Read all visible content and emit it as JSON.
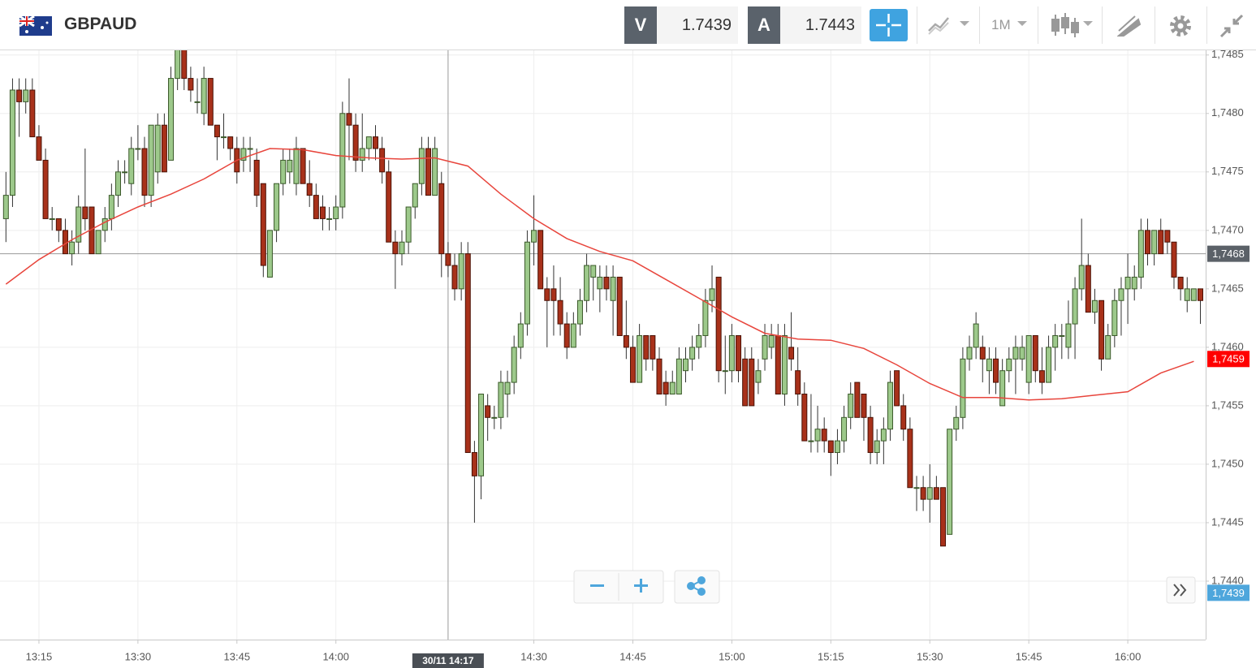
{
  "header": {
    "symbol": "GBPAUD",
    "bid_label": "V",
    "bid": "1.7439",
    "ask_label": "A",
    "ask": "1.7443",
    "timeframe": "1M"
  },
  "chart_data": {
    "type": "candlestick",
    "up_color": "#9dc98b",
    "down_color": "#a8311a",
    "grid": true,
    "xlim": [
      789.1,
      971.8
    ],
    "ylim": [
      1.7435,
      1.74854
    ],
    "xticks": [
      {
        "value": 795,
        "label": "13:15"
      },
      {
        "value": 810,
        "label": "13:30"
      },
      {
        "value": 825,
        "label": "13:45"
      },
      {
        "value": 840,
        "label": "14:00"
      },
      {
        "value": 870,
        "label": "14:30"
      },
      {
        "value": 885,
        "label": "14:45"
      },
      {
        "value": 900,
        "label": "15:00"
      },
      {
        "value": 915,
        "label": "15:15"
      },
      {
        "value": 930,
        "label": "15:30"
      },
      {
        "value": 945,
        "label": "15:45"
      },
      {
        "value": 960,
        "label": "16:00"
      }
    ],
    "yticks": [
      {
        "value": 1.7485,
        "label": "1,7485"
      },
      {
        "value": 1.748,
        "label": "1,7480"
      },
      {
        "value": 1.7475,
        "label": "1,7475"
      },
      {
        "value": 1.747,
        "label": "1,7470"
      },
      {
        "value": 1.7465,
        "label": "1,7465"
      },
      {
        "value": 1.746,
        "label": "1,7460"
      },
      {
        "value": 1.7455,
        "label": "1,7455"
      },
      {
        "value": 1.745,
        "label": "1,7450"
      },
      {
        "value": 1.7445,
        "label": "1,7445"
      },
      {
        "value": 1.744,
        "label": "1,7440"
      }
    ],
    "x": [
      790,
      791,
      792,
      793,
      794,
      795,
      796,
      797,
      798,
      799,
      800,
      801,
      802,
      803,
      804,
      805,
      806,
      807,
      808,
      809,
      810,
      811,
      812,
      813,
      814,
      815,
      816,
      817,
      818,
      819,
      820,
      821,
      822,
      823,
      824,
      825,
      826,
      827,
      828,
      829,
      830,
      831,
      832,
      833,
      834,
      835,
      836,
      837,
      838,
      839,
      840,
      841,
      842,
      843,
      844,
      845,
      846,
      847,
      848,
      849,
      850,
      851,
      852,
      853,
      854,
      855,
      856,
      857,
      858,
      859,
      860,
      861,
      862,
      863,
      864,
      865,
      866,
      867,
      868,
      869,
      870,
      871,
      872,
      873,
      874,
      875,
      876,
      877,
      878,
      879,
      880,
      881,
      882,
      883,
      884,
      885,
      886,
      887,
      888,
      889,
      890,
      891,
      892,
      893,
      894,
      895,
      896,
      897,
      898,
      899,
      900,
      901,
      902,
      903,
      904,
      905,
      906,
      907,
      908,
      909,
      910,
      911,
      912,
      913,
      914,
      915,
      916,
      917,
      918,
      919,
      920,
      921,
      922,
      923,
      924,
      925,
      926,
      927,
      928,
      929,
      930,
      931,
      932,
      933,
      934,
      935,
      936,
      937,
      938,
      939,
      940,
      941,
      942,
      943,
      944,
      945,
      946,
      947,
      948,
      949,
      950,
      951,
      952,
      953,
      954,
      955,
      956,
      957,
      958,
      959,
      960,
      961,
      962,
      963,
      964,
      965,
      966,
      967,
      968,
      969,
      970,
      971
    ],
    "ohlc": [
      [
        1.7471,
        1.7475,
        1.7469,
        1.7473
      ],
      [
        1.7473,
        1.7483,
        1.7472,
        1.7482
      ],
      [
        1.7482,
        1.7483,
        1.7478,
        1.7481
      ],
      [
        1.7481,
        1.7483,
        1.748,
        1.7482
      ],
      [
        1.7482,
        1.7483,
        1.7478,
        1.7478
      ],
      [
        1.7478,
        1.7479,
        1.7476,
        1.7476
      ],
      [
        1.7476,
        1.7477,
        1.7471,
        1.7471
      ],
      [
        1.7471,
        1.7472,
        1.747,
        1.7471
      ],
      [
        1.7471,
        1.7471,
        1.7469,
        1.747
      ],
      [
        1.747,
        1.7471,
        1.7468,
        1.7468
      ],
      [
        1.7468,
        1.747,
        1.7467,
        1.7469
      ],
      [
        1.7469,
        1.7473,
        1.7468,
        1.7472
      ],
      [
        1.7472,
        1.7477,
        1.747,
        1.7471
      ],
      [
        1.7472,
        1.7472,
        1.7468,
        1.7468
      ],
      [
        1.7468,
        1.747,
        1.7468,
        1.747
      ],
      [
        1.747,
        1.7472,
        1.7469,
        1.7471
      ],
      [
        1.7471,
        1.7474,
        1.747,
        1.7473
      ],
      [
        1.7473,
        1.7476,
        1.7472,
        1.7475
      ],
      [
        1.7475,
        1.7476,
        1.7474,
        1.7475
      ],
      [
        1.7474,
        1.7478,
        1.7473,
        1.7477
      ],
      [
        1.7477,
        1.7479,
        1.7476,
        1.7477
      ],
      [
        1.7477,
        1.7478,
        1.7472,
        1.7473
      ],
      [
        1.7473,
        1.7479,
        1.7472,
        1.7479
      ],
      [
        1.7475,
        1.748,
        1.7474,
        1.7479
      ],
      [
        1.7479,
        1.748,
        1.7475,
        1.7475
      ],
      [
        1.7476,
        1.7484,
        1.7476,
        1.7483
      ],
      [
        1.7483,
        1.7487,
        1.7482,
        1.7486
      ],
      [
        1.7486,
        1.7486,
        1.7482,
        1.7483
      ],
      [
        1.7483,
        1.7484,
        1.7481,
        1.7482
      ],
      [
        1.7481,
        1.7483,
        1.748,
        1.7481
      ],
      [
        1.748,
        1.7484,
        1.7479,
        1.7483
      ],
      [
        1.7483,
        1.7483,
        1.7479,
        1.7479
      ],
      [
        1.7479,
        1.7479,
        1.7476,
        1.7478
      ],
      [
        1.7478,
        1.748,
        1.7477,
        1.7478
      ],
      [
        1.7478,
        1.7478,
        1.7476,
        1.7477
      ],
      [
        1.7477,
        1.7478,
        1.7474,
        1.7475
      ],
      [
        1.7476,
        1.7478,
        1.7475,
        1.7477
      ],
      [
        1.7477,
        1.7478,
        1.7475,
        1.7477
      ],
      [
        1.7476,
        1.7477,
        1.7472,
        1.7473
      ],
      [
        1.7474,
        1.7474,
        1.7466,
        1.7467
      ],
      [
        1.7466,
        1.747,
        1.7466,
        1.747
      ],
      [
        1.747,
        1.7474,
        1.7469,
        1.7474
      ],
      [
        1.7474,
        1.7477,
        1.7473,
        1.7476
      ],
      [
        1.7475,
        1.7477,
        1.7474,
        1.7476
      ],
      [
        1.7474,
        1.7478,
        1.7473,
        1.7477
      ],
      [
        1.7477,
        1.7477,
        1.7474,
        1.7474
      ],
      [
        1.7474,
        1.7476,
        1.7472,
        1.7473
      ],
      [
        1.7473,
        1.7474,
        1.7471,
        1.7471
      ],
      [
        1.7472,
        1.7473,
        1.747,
        1.7471
      ],
      [
        1.7471,
        1.7472,
        1.747,
        1.7471
      ],
      [
        1.7471,
        1.7473,
        1.747,
        1.7472
      ],
      [
        1.7472,
        1.7481,
        1.7471,
        1.748
      ],
      [
        1.748,
        1.7483,
        1.7476,
        1.7479
      ],
      [
        1.7479,
        1.748,
        1.7475,
        1.7476
      ],
      [
        1.7476,
        1.748,
        1.7475,
        1.7477
      ],
      [
        1.7477,
        1.7478,
        1.7476,
        1.7478
      ],
      [
        1.7478,
        1.7479,
        1.7476,
        1.7477
      ],
      [
        1.7477,
        1.7478,
        1.7474,
        1.7475
      ],
      [
        1.7475,
        1.7476,
        1.7469,
        1.7469
      ],
      [
        1.7469,
        1.747,
        1.7465,
        1.7468
      ],
      [
        1.7468,
        1.747,
        1.7467,
        1.7469
      ],
      [
        1.7469,
        1.7472,
        1.7468,
        1.7472
      ],
      [
        1.7472,
        1.7474,
        1.7471,
        1.7474
      ],
      [
        1.7474,
        1.7478,
        1.7473,
        1.7477
      ],
      [
        1.7477,
        1.7478,
        1.7473,
        1.7473
      ],
      [
        1.7473,
        1.7478,
        1.7473,
        1.7477
      ],
      [
        1.7474,
        1.7475,
        1.7466,
        1.7468
      ],
      [
        1.7468,
        1.7469,
        1.7466,
        1.7467
      ],
      [
        1.7467,
        1.7468,
        1.7464,
        1.7465
      ],
      [
        1.7465,
        1.7469,
        1.7464,
        1.7468
      ],
      [
        1.7468,
        1.7469,
        1.7451,
        1.7451
      ],
      [
        1.7451,
        1.7452,
        1.7445,
        1.7449
      ],
      [
        1.7449,
        1.7456,
        1.7447,
        1.7456
      ],
      [
        1.7455,
        1.7456,
        1.7452,
        1.7454
      ],
      [
        1.7454,
        1.7455,
        1.7453,
        1.7454
      ],
      [
        1.7454,
        1.7458,
        1.7453,
        1.7457
      ],
      [
        1.7456,
        1.7458,
        1.7454,
        1.7457
      ],
      [
        1.7457,
        1.7461,
        1.7456,
        1.746
      ],
      [
        1.746,
        1.7463,
        1.7459,
        1.7462
      ],
      [
        1.7462,
        1.747,
        1.7461,
        1.7469
      ],
      [
        1.7469,
        1.7473,
        1.7467,
        1.747
      ],
      [
        1.747,
        1.747,
        1.7465,
        1.7465
      ],
      [
        1.7465,
        1.7466,
        1.746,
        1.7464
      ],
      [
        1.7465,
        1.7467,
        1.7461,
        1.7464
      ],
      [
        1.7464,
        1.7466,
        1.7461,
        1.7462
      ],
      [
        1.7462,
        1.7463,
        1.7459,
        1.746
      ],
      [
        1.746,
        1.7463,
        1.746,
        1.7462
      ],
      [
        1.7462,
        1.7465,
        1.7461,
        1.7464
      ],
      [
        1.7464,
        1.7468,
        1.7463,
        1.7467
      ],
      [
        1.7466,
        1.7467,
        1.7464,
        1.7467
      ],
      [
        1.7465,
        1.7467,
        1.7463,
        1.7466
      ],
      [
        1.7466,
        1.7467,
        1.7464,
        1.7465
      ],
      [
        1.7464,
        1.7467,
        1.7461,
        1.7466
      ],
      [
        1.7466,
        1.7466,
        1.7461,
        1.7461
      ],
      [
        1.7461,
        1.7464,
        1.7459,
        1.746
      ],
      [
        1.746,
        1.7461,
        1.7457,
        1.7457
      ],
      [
        1.7457,
        1.7462,
        1.7457,
        1.7461
      ],
      [
        1.7461,
        1.7461,
        1.7458,
        1.7459
      ],
      [
        1.7461,
        1.7461,
        1.7458,
        1.7459
      ],
      [
        1.7459,
        1.746,
        1.7456,
        1.7456
      ],
      [
        1.7457,
        1.7458,
        1.7455,
        1.7456
      ],
      [
        1.7456,
        1.7458,
        1.7456,
        1.7457
      ],
      [
        1.7456,
        1.746,
        1.7456,
        1.7459
      ],
      [
        1.7458,
        1.746,
        1.7457,
        1.7459
      ],
      [
        1.7459,
        1.7461,
        1.7458,
        1.746
      ],
      [
        1.746,
        1.7462,
        1.7459,
        1.7461
      ],
      [
        1.7461,
        1.7465,
        1.746,
        1.7464
      ],
      [
        1.7464,
        1.7467,
        1.7463,
        1.7465
      ],
      [
        1.7466,
        1.7466,
        1.7457,
        1.7458
      ],
      [
        1.7458,
        1.7461,
        1.7456,
        1.7458
      ],
      [
        1.7458,
        1.7462,
        1.7457,
        1.7461
      ],
      [
        1.7461,
        1.7461,
        1.7457,
        1.7458
      ],
      [
        1.7459,
        1.746,
        1.7455,
        1.7455
      ],
      [
        1.7459,
        1.746,
        1.7455,
        1.7455
      ],
      [
        1.7457,
        1.7459,
        1.7456,
        1.7458
      ],
      [
        1.7459,
        1.7462,
        1.7458,
        1.7461
      ],
      [
        1.746,
        1.7462,
        1.7459,
        1.7461
      ],
      [
        1.7461,
        1.7462,
        1.7456,
        1.7456
      ],
      [
        1.7456,
        1.7462,
        1.7455,
        1.7461
      ],
      [
        1.746,
        1.7463,
        1.7458,
        1.7459
      ],
      [
        1.7458,
        1.746,
        1.7455,
        1.7456
      ],
      [
        1.7456,
        1.7457,
        1.7452,
        1.7452
      ],
      [
        1.7452,
        1.7456,
        1.7451,
        1.7452
      ],
      [
        1.7452,
        1.7455,
        1.7451,
        1.7453
      ],
      [
        1.7453,
        1.7454,
        1.7451,
        1.7452
      ],
      [
        1.7452,
        1.7452,
        1.7449,
        1.7451
      ],
      [
        1.7451,
        1.7453,
        1.745,
        1.7452
      ],
      [
        1.7452,
        1.7455,
        1.7451,
        1.7454
      ],
      [
        1.7454,
        1.7457,
        1.7453,
        1.7456
      ],
      [
        1.7457,
        1.7457,
        1.7454,
        1.7454
      ],
      [
        1.7456,
        1.7456,
        1.7452,
        1.7454
      ],
      [
        1.7454,
        1.7455,
        1.745,
        1.7451
      ],
      [
        1.7451,
        1.7453,
        1.745,
        1.7452
      ],
      [
        1.7452,
        1.7454,
        1.745,
        1.7453
      ],
      [
        1.7453,
        1.7458,
        1.7452,
        1.7457
      ],
      [
        1.7458,
        1.7458,
        1.7455,
        1.7455
      ],
      [
        1.7455,
        1.7456,
        1.7452,
        1.7453
      ],
      [
        1.7453,
        1.7454,
        1.7448,
        1.7448
      ],
      [
        1.7448,
        1.7449,
        1.7446,
        1.7448
      ],
      [
        1.7448,
        1.7449,
        1.7446,
        1.7447
      ],
      [
        1.7447,
        1.745,
        1.7445,
        1.7448
      ],
      [
        1.7448,
        1.7449,
        1.7447,
        1.7447
      ],
      [
        1.7448,
        1.7448,
        1.7443,
        1.7443
      ],
      [
        1.7444,
        1.7453,
        1.7444,
        1.7453
      ],
      [
        1.7453,
        1.7455,
        1.7452,
        1.7454
      ],
      [
        1.7454,
        1.746,
        1.7453,
        1.7459
      ],
      [
        1.7459,
        1.7461,
        1.7458,
        1.746
      ],
      [
        1.746,
        1.7463,
        1.7459,
        1.7462
      ],
      [
        1.746,
        1.7461,
        1.7457,
        1.7459
      ],
      [
        1.7458,
        1.746,
        1.7456,
        1.7459
      ],
      [
        1.7459,
        1.746,
        1.7456,
        1.7457
      ],
      [
        1.7455,
        1.7459,
        1.7455,
        1.7458
      ],
      [
        1.7458,
        1.746,
        1.7457,
        1.7459
      ],
      [
        1.7459,
        1.7461,
        1.7456,
        1.746
      ],
      [
        1.7459,
        1.7461,
        1.7458,
        1.746
      ],
      [
        1.7457,
        1.7461,
        1.7456,
        1.7461
      ],
      [
        1.7461,
        1.7461,
        1.7457,
        1.7458
      ],
      [
        1.7458,
        1.746,
        1.7456,
        1.7457
      ],
      [
        1.7457,
        1.7461,
        1.7457,
        1.746
      ],
      [
        1.746,
        1.7462,
        1.7458,
        1.7461
      ],
      [
        1.7461,
        1.7462,
        1.7459,
        1.7461
      ],
      [
        1.746,
        1.7464,
        1.7459,
        1.7462
      ],
      [
        1.7462,
        1.7466,
        1.7459,
        1.7465
      ],
      [
        1.7465,
        1.7471,
        1.7464,
        1.7467
      ],
      [
        1.7467,
        1.7468,
        1.7463,
        1.7463
      ],
      [
        1.7463,
        1.7465,
        1.7462,
        1.7464
      ],
      [
        1.7464,
        1.7464,
        1.7458,
        1.7459
      ],
      [
        1.7459,
        1.7462,
        1.7459,
        1.7461
      ],
      [
        1.7461,
        1.7465,
        1.746,
        1.7464
      ],
      [
        1.7464,
        1.7466,
        1.7461,
        1.7465
      ],
      [
        1.7465,
        1.7468,
        1.7462,
        1.7466
      ],
      [
        1.7465,
        1.7467,
        1.7464,
        1.7466
      ],
      [
        1.7466,
        1.7471,
        1.7465,
        1.747
      ],
      [
        1.747,
        1.7471,
        1.7467,
        1.7468
      ],
      [
        1.7468,
        1.747,
        1.7467,
        1.747
      ],
      [
        1.747,
        1.7471,
        1.7468,
        1.7468
      ],
      [
        1.747,
        1.747,
        1.7468,
        1.7469
      ],
      [
        1.7469,
        1.7469,
        1.7465,
        1.7466
      ],
      [
        1.7466,
        1.7466,
        1.7464,
        1.7465
      ],
      [
        1.7464,
        1.7466,
        1.7463,
        1.7465
      ],
      [
        1.7464,
        1.7465,
        1.7464,
        1.7465
      ],
      [
        1.7465,
        1.7465,
        1.7462,
        1.7464
      ]
    ],
    "ma": {
      "color": "#e8453c",
      "x": [
        790,
        795,
        800,
        805,
        810,
        815,
        820,
        825,
        830,
        835,
        840,
        845,
        850,
        855,
        860,
        865,
        870,
        875,
        880,
        885,
        890,
        895,
        900,
        905,
        910,
        915,
        920,
        925,
        930,
        935,
        940,
        945,
        950,
        955,
        960,
        965,
        970
      ],
      "values": [
        1.74654,
        1.74675,
        1.74692,
        1.74707,
        1.7472,
        1.74731,
        1.74744,
        1.7476,
        1.7477,
        1.74769,
        1.74764,
        1.74762,
        1.74761,
        1.74762,
        1.74755,
        1.74731,
        1.7471,
        1.74693,
        1.74682,
        1.74674,
        1.74658,
        1.74642,
        1.74626,
        1.74612,
        1.74607,
        1.74606,
        1.74599,
        1.74585,
        1.74569,
        1.74557,
        1.74557,
        1.74555,
        1.74556,
        1.74559,
        1.74562,
        1.74578,
        1.74588
      ]
    },
    "price_tags": [
      {
        "value": 1.7468,
        "label": "1,7468",
        "color": "#5b6168"
      },
      {
        "value": 1.7459,
        "label": "1,7459",
        "color": "#ff0000"
      },
      {
        "value": 1.7439,
        "label": "1,7439",
        "color": "#4ea6dc"
      }
    ],
    "crosshair": {
      "time": 857,
      "label": "30/11 14:17"
    }
  }
}
